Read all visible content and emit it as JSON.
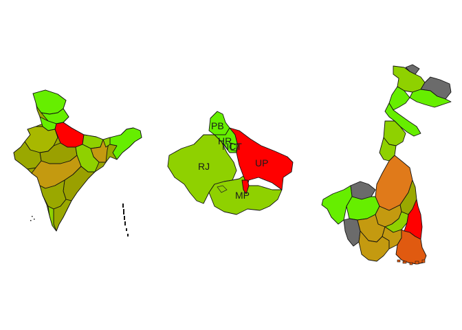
{
  "colors": {
    "red": "#ff0000",
    "bright_green": "#66ee00",
    "yellow_green": "#8fd100",
    "olive": "#a8b800",
    "dark_olive": "#9aa000",
    "ochre": "#c49a10",
    "orange": "#e07a1a",
    "dark_orange": "#e05a10",
    "gray": "#6b6b6b"
  },
  "maps": [
    {
      "name": "india-map",
      "state_labels": []
    },
    {
      "name": "north-india-map",
      "state_labels": [
        {
          "id": "pb",
          "text": "PB"
        },
        {
          "id": "hr",
          "text": "HR"
        },
        {
          "id": "nct",
          "text": "NCT"
        },
        {
          "id": "rj",
          "text": "RJ"
        },
        {
          "id": "up",
          "text": "UP"
        },
        {
          "id": "mp",
          "text": "MP"
        }
      ]
    },
    {
      "name": "west-bengal-map",
      "state_labels": []
    }
  ]
}
